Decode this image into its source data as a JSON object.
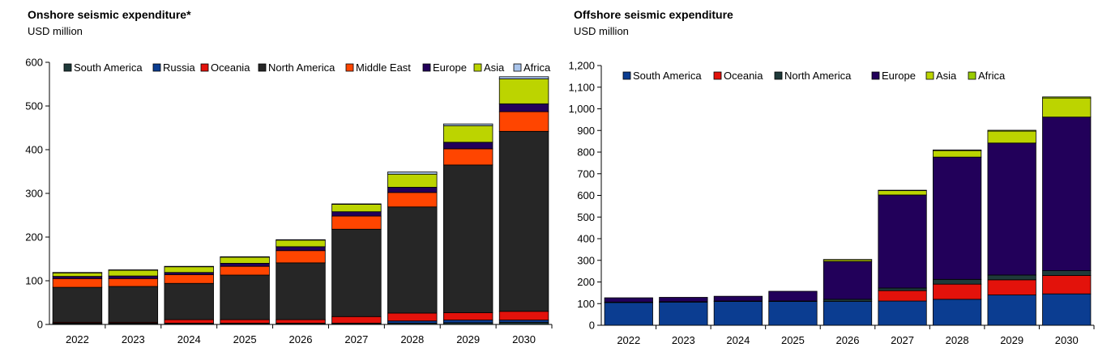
{
  "chart_data": [
    {
      "type": "bar",
      "stacked": true,
      "title": "Onshore seismic expenditure*",
      "subtitle": "USD million",
      "categories": [
        "2022",
        "2023",
        "2024",
        "2025",
        "2026",
        "2027",
        "2028",
        "2029",
        "2030"
      ],
      "ylim": [
        0,
        600
      ],
      "yticks": [
        0,
        100,
        200,
        300,
        400,
        500,
        600
      ],
      "ytick_labels": [
        "0",
        "100",
        "200",
        "300",
        "400",
        "500",
        "600"
      ],
      "grid": false,
      "legend_position": "top",
      "series": [
        {
          "name": "South America",
          "color": "#1f3a3a",
          "values": [
            2,
            2,
            2,
            2,
            2,
            2,
            3,
            4,
            5
          ]
        },
        {
          "name": "Russia",
          "color": "#0b3d91",
          "values": [
            1,
            1,
            1,
            1,
            1,
            1,
            5,
            6,
            5
          ]
        },
        {
          "name": "Oceania",
          "color": "#e3120b",
          "values": [
            2,
            2,
            8,
            8,
            8,
            15,
            18,
            17,
            20
          ]
        },
        {
          "name": "North America",
          "color": "#262626",
          "values": [
            80,
            82,
            83,
            102,
            130,
            200,
            243,
            338,
            412
          ]
        },
        {
          "name": "Middle East",
          "color": "#ff4500",
          "values": [
            20,
            18,
            20,
            20,
            28,
            30,
            33,
            37,
            45
          ]
        },
        {
          "name": "Europe",
          "color": "#22005a",
          "values": [
            5,
            6,
            5,
            7,
            9,
            10,
            12,
            15,
            18
          ]
        },
        {
          "name": "Asia",
          "color": "#bcd400",
          "values": [
            8,
            13,
            13,
            14,
            15,
            17,
            30,
            38,
            57
          ]
        },
        {
          "name": "Africa",
          "color": "#a9c4eb",
          "values": [
            1,
            1,
            1,
            1,
            1,
            1,
            5,
            4,
            5
          ]
        }
      ]
    },
    {
      "type": "bar",
      "stacked": true,
      "title": "Offshore seismic expenditure",
      "subtitle": "USD million",
      "categories": [
        "2022",
        "2023",
        "2024",
        "2025",
        "2026",
        "2027",
        "2028",
        "2029",
        "2030"
      ],
      "ylim": [
        0,
        1200
      ],
      "yticks": [
        0,
        100,
        200,
        300,
        400,
        500,
        600,
        700,
        800,
        900,
        1000,
        1100,
        1200
      ],
      "ytick_labels": [
        "0",
        "100",
        "200",
        "300",
        "400",
        "500",
        "600",
        "700",
        "800",
        "900",
        "1,000",
        "1,100",
        "1,200"
      ],
      "grid": false,
      "legend_position": "top",
      "series": [
        {
          "name": "South America",
          "color": "#0b3d91",
          "values": [
            105,
            107,
            110,
            110,
            110,
            112,
            120,
            140,
            145
          ]
        },
        {
          "name": "Oceania",
          "color": "#e3120b",
          "values": [
            0,
            0,
            0,
            0,
            0,
            48,
            70,
            70,
            85
          ]
        },
        {
          "name": "North America",
          "color": "#1f3a3a",
          "values": [
            2,
            2,
            2,
            2,
            10,
            12,
            22,
            22,
            22
          ]
        },
        {
          "name": "Europe",
          "color": "#22005a",
          "values": [
            20,
            20,
            22,
            45,
            175,
            430,
            565,
            610,
            710
          ]
        },
        {
          "name": "Asia",
          "color": "#bcd400",
          "values": [
            0,
            0,
            0,
            0,
            8,
            20,
            30,
            55,
            88
          ]
        },
        {
          "name": "Africa",
          "color": "#99cc00",
          "values": [
            0,
            0,
            0,
            0,
            1,
            2,
            3,
            4,
            5
          ]
        }
      ]
    }
  ]
}
